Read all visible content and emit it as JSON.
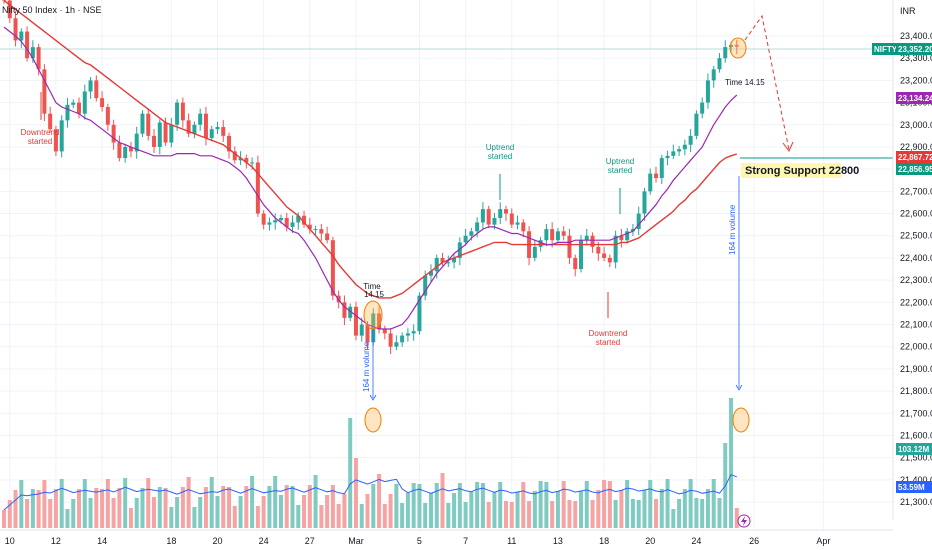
{
  "header": {
    "title": "Nifty 50 Index · 1h · NSE",
    "currency": "INR"
  },
  "badges": {
    "last_symbol": "NIFTY",
    "last_price": "23,352.20",
    "ma_fast": "23,134.24",
    "ma_slow": "22,867.72",
    "support_price": "22,856.95",
    "volume_current": "103.12M",
    "volume_avg": "53.59M"
  },
  "colors": {
    "up": "#26a69a",
    "down": "#ef5350",
    "ma_fast": "#9c27b0",
    "ma_slow": "#e53935",
    "vol_up": "#7fcbc2",
    "vol_down": "#f5a3a3",
    "vol_ma": "#2962ff",
    "highlight": "#f57c00"
  },
  "annotations": {
    "downtrend_1": [
      "Downtrend",
      "started"
    ],
    "uptrend_1": [
      "Uptrend",
      "started"
    ],
    "downtrend_2": [
      "Downtrend",
      "started"
    ],
    "uptrend_2": [
      "Uptrend",
      "started"
    ],
    "time_1": [
      "Time",
      "14.15"
    ],
    "time_2": "Time 14.15",
    "volume_1": "164 m volume",
    "volume_2": "164 m volume",
    "support_label": "Strong Support 22800"
  },
  "chart_data": {
    "type": "candlestick",
    "title": "Nifty 50 Index · 1h · NSE",
    "ylim": [
      21200,
      23500
    ],
    "y_ticks": [
      23400,
      23300,
      23200,
      23100,
      23000,
      22900,
      22800,
      22700,
      22600,
      22500,
      22400,
      22300,
      22200,
      22100,
      22000,
      21900,
      21800,
      21700,
      21600,
      21500,
      21400,
      21300
    ],
    "x_ticks": [
      {
        "label": "10",
        "i": 1
      },
      {
        "label": "12",
        "i": 9
      },
      {
        "label": "14",
        "i": 17
      },
      {
        "label": "18",
        "i": 29
      },
      {
        "label": "20",
        "i": 37
      },
      {
        "label": "24",
        "i": 45
      },
      {
        "label": "27",
        "i": 53
      },
      {
        "label": "Mar",
        "i": 61
      },
      {
        "label": "5",
        "i": 72
      },
      {
        "label": "7",
        "i": 80
      },
      {
        "label": "11",
        "i": 88
      },
      {
        "label": "13",
        "i": 96
      },
      {
        "label": "18",
        "i": 104
      },
      {
        "label": "20",
        "i": 112
      },
      {
        "label": "24",
        "i": 120
      },
      {
        "label": "26",
        "i": 130
      },
      {
        "label": "Apr",
        "i": 142
      }
    ],
    "support_level": 22800,
    "last_price": 23352.2,
    "candles_close": [
      23560,
      23480,
      23380,
      23420,
      23300,
      23350,
      23250,
      23050,
      22980,
      22880,
      23020,
      23090,
      23100,
      23050,
      23150,
      23200,
      23120,
      23080,
      23000,
      22920,
      22850,
      22900,
      22880,
      22960,
      23050,
      22950,
      22900,
      23010,
      22920,
      23000,
      23100,
      23020,
      22960,
      23000,
      23050,
      22940,
      22980,
      22990,
      22950,
      22880,
      22840,
      22850,
      22830,
      22830,
      22600,
      22550,
      22560,
      22570,
      22580,
      22540,
      22560,
      22590,
      22550,
      22530,
      22530,
      22510,
      22480,
      22230,
      22200,
      22130,
      22180,
      22050,
      22100,
      22020,
      22150,
      22080,
      22060,
      22000,
      22020,
      22050,
      22060,
      22070,
      22230,
      22320,
      22340,
      22400,
      22380,
      22380,
      22400,
      22470,
      22500,
      22520,
      22560,
      22620,
      22550,
      22580,
      22620,
      22600,
      22550,
      22560,
      22520,
      22400,
      22450,
      22480,
      22530,
      22480,
      22520,
      22500,
      22400,
      22350,
      22480,
      22500,
      22450,
      22420,
      22400,
      22380,
      22500,
      22480,
      22520,
      22530,
      22600,
      22700,
      22780,
      22760,
      22850,
      22860,
      22880,
      22890,
      22910,
      22950,
      23050,
      23100,
      23200,
      23250,
      23300,
      23350,
      23360,
      23352.2
    ],
    "ma_fast": [
      23440,
      23420,
      23400,
      23375,
      23340,
      23300,
      23250,
      23200,
      23150,
      23100,
      23080,
      23070,
      23060,
      23050,
      23030,
      23020,
      23000,
      22980,
      22960,
      22940,
      22920,
      22910,
      22900,
      22890,
      22880,
      22870,
      22860,
      22860,
      22860,
      22860,
      22870,
      22870,
      22870,
      22870,
      22860,
      22860,
      22860,
      22850,
      22840,
      22830,
      22810,
      22790,
      22760,
      22720,
      22680,
      22640,
      22610,
      22580,
      22560,
      22540,
      22520,
      22510,
      22480,
      22440,
      22400,
      22350,
      22300,
      22250,
      22210,
      22180,
      22160,
      22140,
      22120,
      22100,
      22090,
      22080,
      22080,
      22080,
      22090,
      22100,
      22130,
      22170,
      22210,
      22250,
      22290,
      22330,
      22360,
      22390,
      22420,
      22440,
      22460,
      22490,
      22510,
      22530,
      22540,
      22540,
      22530,
      22520,
      22510,
      22510,
      22500,
      22490,
      22480,
      22470,
      22460,
      22460,
      22470,
      22470,
      22470,
      22480,
      22480,
      22480,
      22480,
      22480,
      22480,
      22480,
      22490,
      22500,
      22510,
      22520,
      22550,
      22580,
      22610,
      22640,
      22680,
      22710,
      22750,
      22780,
      22810,
      22840,
      22870,
      22900,
      22950,
      23000,
      23040,
      23080,
      23110,
      23134.24
    ],
    "ma_slow": [
      23560,
      23540,
      23520,
      23500,
      23480,
      23460,
      23440,
      23420,
      23400,
      23380,
      23360,
      23340,
      23320,
      23300,
      23280,
      23270,
      23250,
      23230,
      23210,
      23190,
      23170,
      23150,
      23130,
      23110,
      23090,
      23070,
      23050,
      23030,
      23010,
      23000,
      22990,
      22980,
      22970,
      22960,
      22950,
      22940,
      22930,
      22920,
      22910,
      22890,
      22870,
      22850,
      22830,
      22810,
      22780,
      22750,
      22720,
      22690,
      22660,
      22630,
      22610,
      22590,
      22560,
      22530,
      22500,
      22470,
      22440,
      22410,
      22370,
      22340,
      22310,
      22280,
      22260,
      22240,
      22230,
      22220,
      22220,
      22220,
      22230,
      22240,
      22260,
      22280,
      22300,
      22320,
      22340,
      22360,
      22380,
      22390,
      22400,
      22410,
      22420,
      22430,
      22440,
      22450,
      22460,
      22470,
      22470,
      22470,
      22460,
      22460,
      22460,
      22460,
      22460,
      22460,
      22460,
      22460,
      22460,
      22460,
      22460,
      22460,
      22460,
      22460,
      22460,
      22460,
      22460,
      22460,
      22460,
      22470,
      22470,
      22480,
      22490,
      22510,
      22530,
      22550,
      22570,
      22590,
      22610,
      22640,
      22660,
      22690,
      22710,
      22740,
      22770,
      22800,
      22830,
      22850,
      22860,
      22867.72
    ]
  }
}
